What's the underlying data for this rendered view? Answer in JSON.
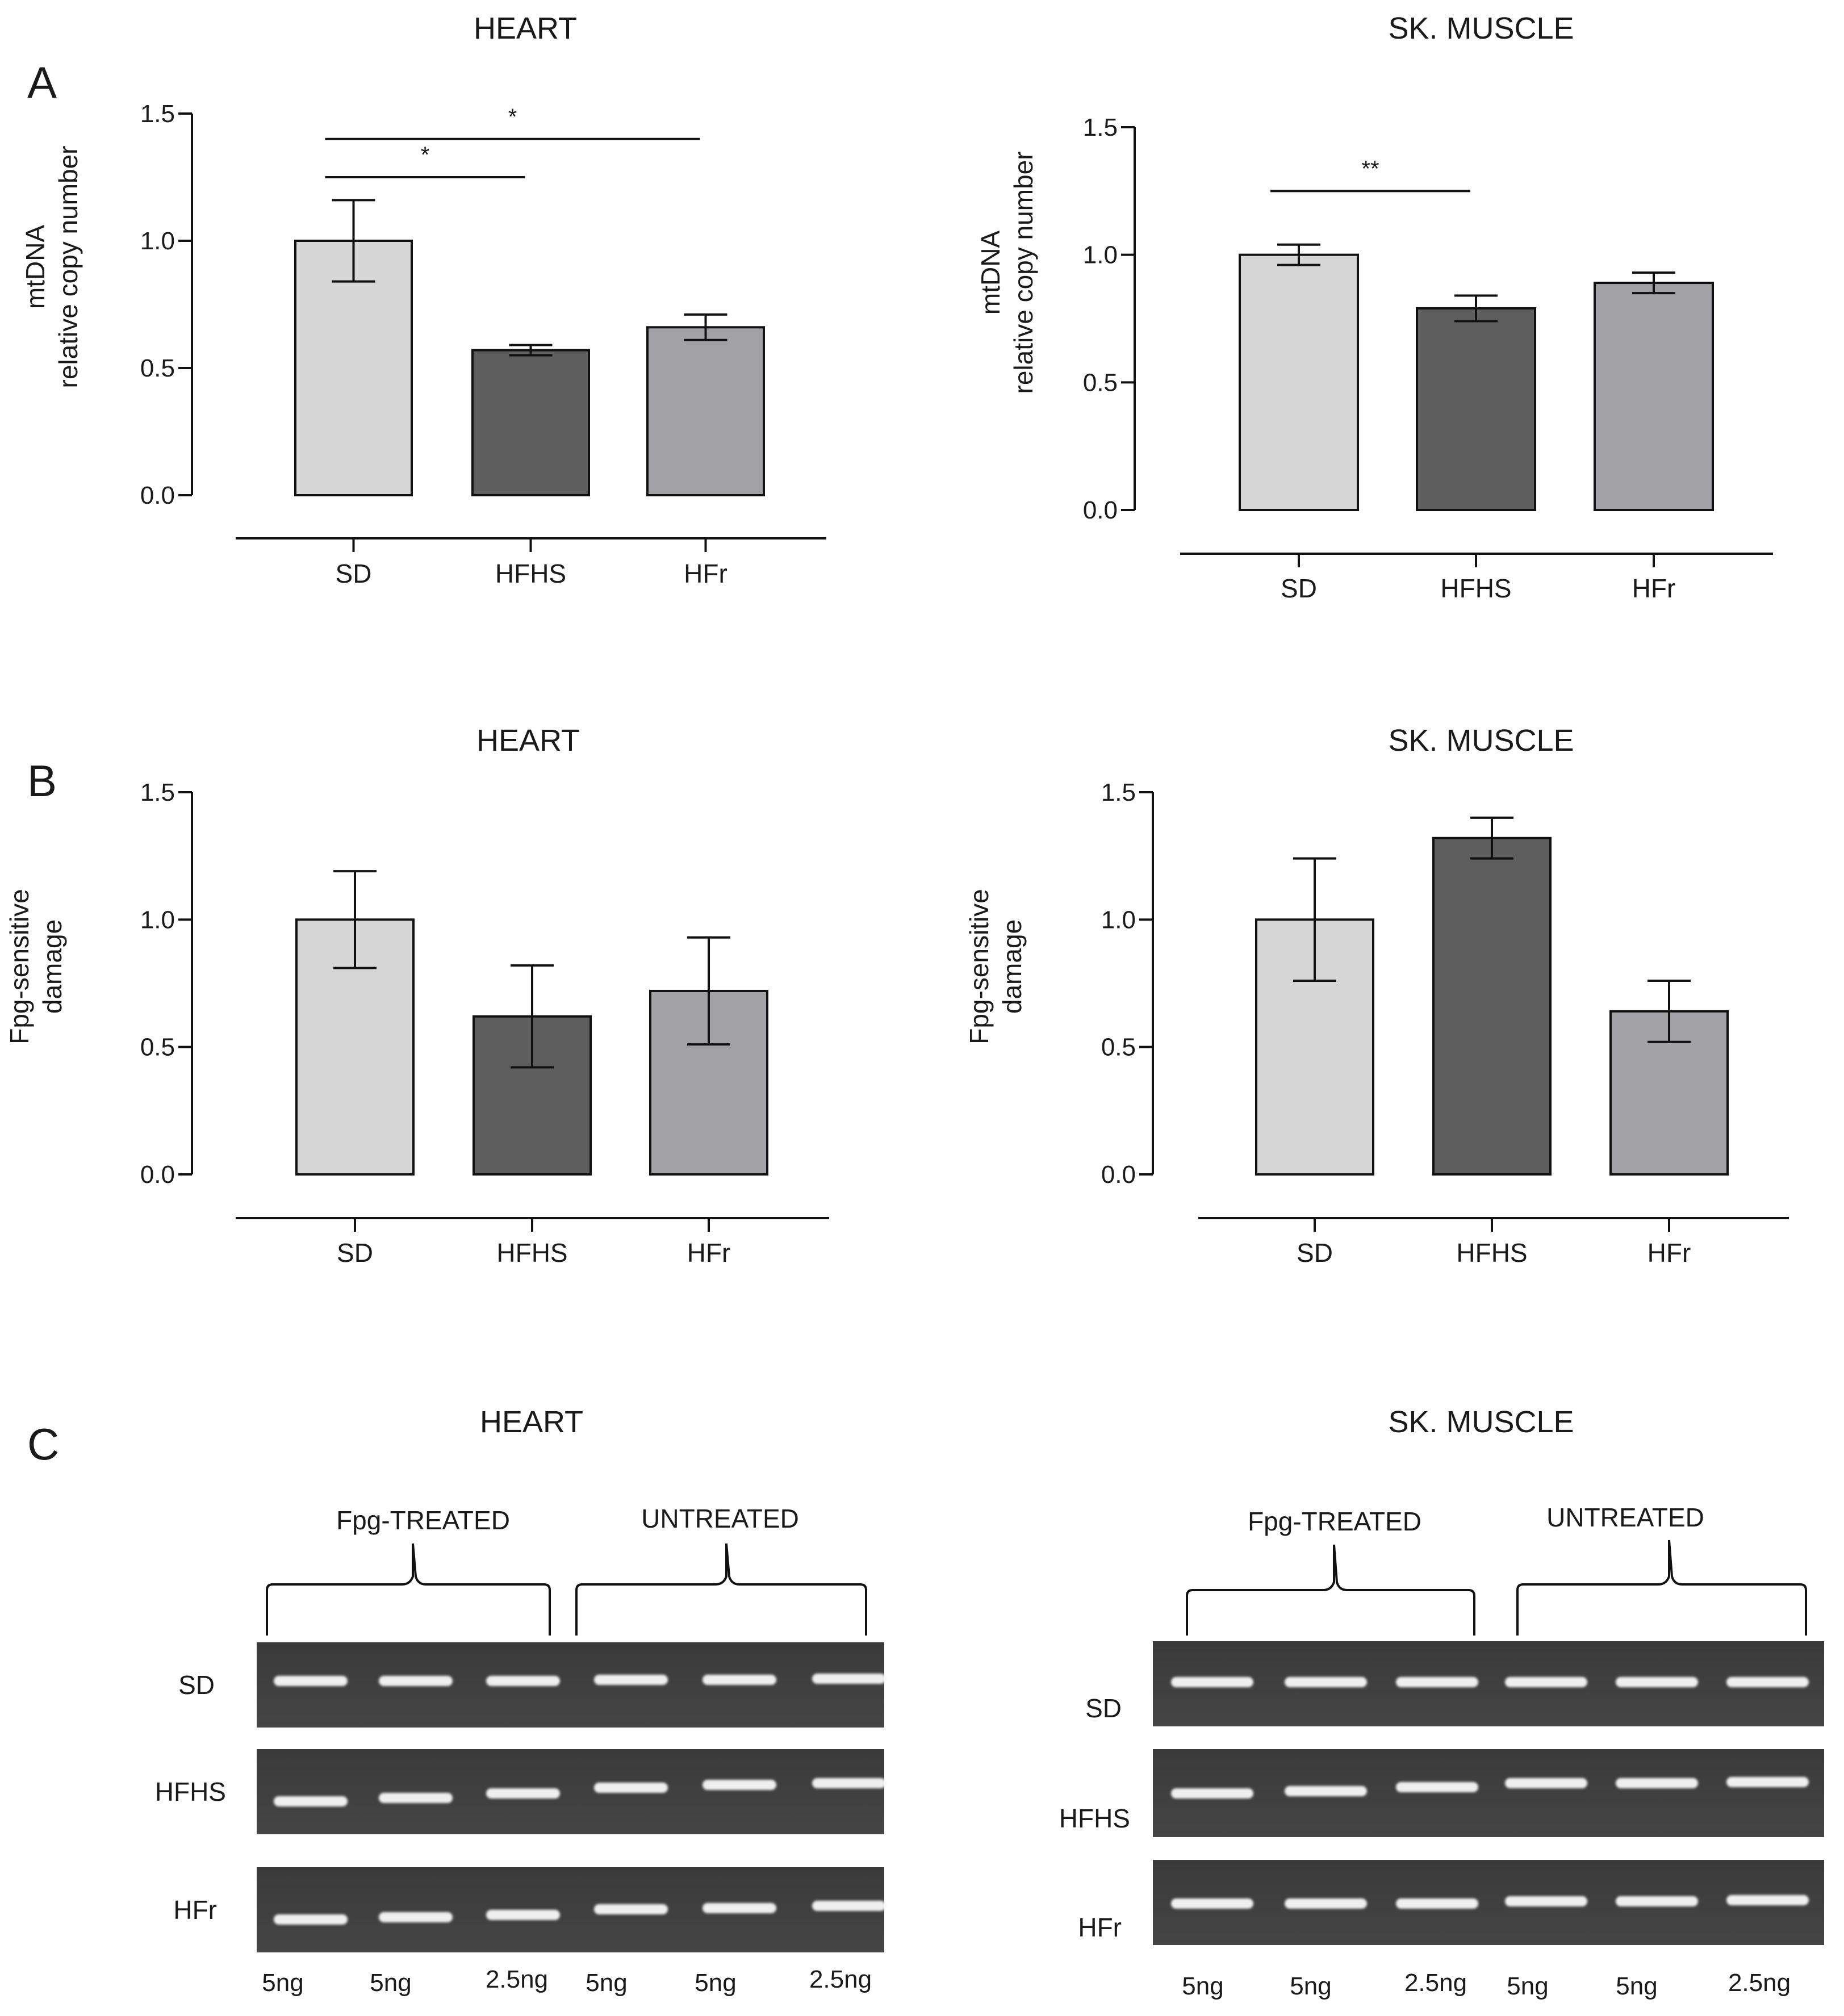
{
  "panel_labels": [
    "A",
    "B",
    "C"
  ],
  "chart_data": [
    {
      "type": "bar",
      "panel": "A",
      "title": "HEART",
      "categories": [
        "SD",
        "HFHS",
        "HFr"
      ],
      "values": [
        1.0,
        0.57,
        0.66
      ],
      "errors": [
        0.16,
        0.02,
        0.05
      ],
      "colors": [
        "#d6d6d6",
        "#5e5e5e",
        "#a2a1a6"
      ],
      "ylabel": [
        "mtDNA",
        "relative copy number"
      ],
      "ylim": [
        0,
        1.5
      ],
      "yticks": [
        0.0,
        0.5,
        1.0,
        1.5
      ],
      "ytick_labels": [
        "0.0",
        "0.5",
        "1.0",
        "1.5"
      ],
      "significance": [
        {
          "from": 0,
          "to": 1,
          "label": "*",
          "y": 1.25
        },
        {
          "from": 0,
          "to": 2,
          "label": "*",
          "y": 1.4
        }
      ]
    },
    {
      "type": "bar",
      "panel": "A",
      "title": "SK. MUSCLE",
      "categories": [
        "SD",
        "HFHS",
        "HFr"
      ],
      "values": [
        1.0,
        0.79,
        0.89
      ],
      "errors": [
        0.04,
        0.05,
        0.04
      ],
      "colors": [
        "#d6d6d6",
        "#5e5e5e",
        "#a2a1a6"
      ],
      "ylabel": [
        "mtDNA",
        "relative copy number"
      ],
      "ylim": [
        0,
        1.5
      ],
      "yticks": [
        0.0,
        0.5,
        1.0,
        1.5
      ],
      "ytick_labels": [
        "0.0",
        "0.5",
        "1.0",
        "1.5"
      ],
      "significance": [
        {
          "from": 0,
          "to": 1,
          "label": "**",
          "y": 1.25
        }
      ]
    },
    {
      "type": "bar",
      "panel": "B",
      "title": "HEART",
      "categories": [
        "SD",
        "HFHS",
        "HFr"
      ],
      "values": [
        1.0,
        0.62,
        0.72
      ],
      "errors": [
        0.19,
        0.2,
        0.21
      ],
      "colors": [
        "#d6d6d6",
        "#5e5e5e",
        "#a2a1a6"
      ],
      "ylabel": [
        "Fpg-sensitive",
        "damage"
      ],
      "ylim": [
        0,
        1.5
      ],
      "yticks": [
        0.0,
        0.5,
        1.0,
        1.5
      ],
      "ytick_labels": [
        "0.0",
        "0.5",
        "1.0",
        "1.5"
      ],
      "significance": []
    },
    {
      "type": "bar",
      "panel": "B",
      "title": "SK. MUSCLE",
      "categories": [
        "SD",
        "HFHS",
        "HFr"
      ],
      "values": [
        1.0,
        1.32,
        0.64
      ],
      "errors": [
        0.24,
        0.08,
        0.12
      ],
      "colors": [
        "#d6d6d6",
        "#5e5e5e",
        "#a2a1a6"
      ],
      "ylabel": [
        "Fpg-sensitive",
        "damage"
      ],
      "ylim": [
        0,
        1.5
      ],
      "yticks": [
        0.0,
        0.5,
        1.0,
        1.5
      ],
      "ytick_labels": [
        "0.0",
        "0.5",
        "1.0",
        "1.5"
      ],
      "significance": []
    }
  ],
  "gels": [
    {
      "panel": "C",
      "title": "HEART",
      "groups": [
        "Fpg-TREATED",
        "UNTREATED"
      ],
      "rows": [
        "SD",
        "HFHS",
        "HFr"
      ],
      "lanes": [
        "5ng",
        "5ng",
        "2.5ng",
        "5ng",
        "5ng",
        "2.5ng"
      ]
    },
    {
      "panel": "C",
      "title": "SK. MUSCLE",
      "groups": [
        "Fpg-TREATED",
        "UNTREATED"
      ],
      "rows": [
        "SD",
        "HFHS",
        "HFr"
      ],
      "lanes": [
        "5ng",
        "5ng",
        "2.5ng",
        "5ng",
        "5ng",
        "2.5ng"
      ]
    }
  ]
}
